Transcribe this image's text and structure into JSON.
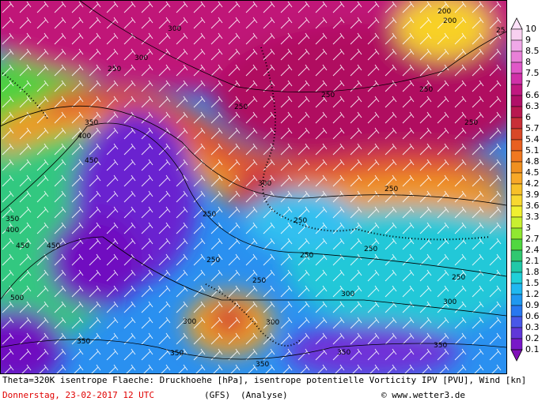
{
  "map": {
    "contour_labels": [
      "300",
      "300",
      "250",
      "250",
      "250",
      "250",
      "200",
      "200",
      "250",
      "350",
      "400",
      "450",
      "300",
      "250",
      "250",
      "250",
      "350",
      "400",
      "450",
      "450",
      "250",
      "250",
      "250",
      "250",
      "250",
      "500",
      "300",
      "300",
      "300",
      "300",
      "350",
      "350",
      "350",
      "350",
      "350",
      "25"
    ],
    "legend": {
      "labels": [
        "10",
        "9",
        "8.5",
        "8",
        "7.5",
        "7",
        "6.6",
        "6.3",
        "6",
        "5.7",
        "5.4",
        "5.1",
        "4.8",
        "4.5",
        "4.2",
        "3.9",
        "3.6",
        "3.3",
        "3",
        "2.7",
        "2.4",
        "2.1",
        "1.8",
        "1.5",
        "1.2",
        "0.9",
        "0.6",
        "0.3",
        "0.2",
        "0.1"
      ]
    },
    "footer": {
      "description": "Theta=320K isentrope Flaeche: Druckhoehe [hPa], isentrope potentielle Vorticity IPV [PVU], Wind [kn]",
      "date": "Donnerstag, 23-02-2017  12 UTC",
      "model": "(GFS)",
      "run": "(Analyse)",
      "copyright": "© www.wetter3.de"
    }
  }
}
